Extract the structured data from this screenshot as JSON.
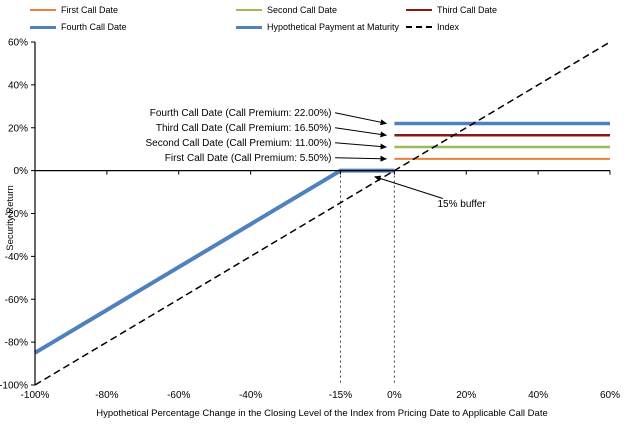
{
  "chart_data": {
    "type": "line",
    "title": "",
    "xlabel": "Hypothetical Percentage Change in the Closing Level of the Index from Pricing Date to Applicable Call Date",
    "ylabel": "Security Return",
    "xlim": [
      -100,
      60
    ],
    "ylim": [
      -100,
      60
    ],
    "grid": false,
    "legend_position": "top",
    "x_ticks": [
      {
        "value": -100,
        "label": "-100%"
      },
      {
        "value": -80,
        "label": "-80%"
      },
      {
        "value": -60,
        "label": "-60%"
      },
      {
        "value": -40,
        "label": "-40%"
      },
      {
        "value": -15,
        "label": "-15%"
      },
      {
        "value": 0,
        "label": "0%"
      },
      {
        "value": 20,
        "label": "20%"
      },
      {
        "value": 40,
        "label": "40%"
      },
      {
        "value": 60,
        "label": "60%"
      }
    ],
    "y_ticks": [
      {
        "value": 60,
        "label": "60%"
      },
      {
        "value": 40,
        "label": "40%"
      },
      {
        "value": 20,
        "label": "20%"
      },
      {
        "value": 0,
        "label": "0%"
      },
      {
        "value": -20,
        "label": "-20%"
      },
      {
        "value": -40,
        "label": "-40%"
      },
      {
        "value": -60,
        "label": "-60%"
      },
      {
        "value": -80,
        "label": "-80%"
      },
      {
        "value": -100,
        "label": "-100%"
      }
    ],
    "series": [
      {
        "name": "First Call Date",
        "color": "#E8823C",
        "width": 2,
        "dash": "",
        "points": [
          [
            0,
            5.5
          ],
          [
            60,
            5.5
          ]
        ]
      },
      {
        "name": "Second Call Date",
        "color": "#9BBB59",
        "width": 2.5,
        "dash": "",
        "points": [
          [
            0,
            11
          ],
          [
            60,
            11
          ]
        ]
      },
      {
        "name": "Third Call Date",
        "color": "#8B1A12",
        "width": 2.5,
        "dash": "",
        "points": [
          [
            0,
            16.5
          ],
          [
            60,
            16.5
          ]
        ]
      },
      {
        "name": "Fourth Call Date",
        "color": "#4F81BD",
        "width": 3.5,
        "dash": "",
        "points": [
          [
            0,
            22
          ],
          [
            60,
            22
          ]
        ]
      },
      {
        "name": "Hypothetical Payment at Maturity",
        "color": "#4F81BD",
        "width": 4,
        "dash": "",
        "points": [
          [
            -100,
            -85
          ],
          [
            -15,
            0
          ],
          [
            0,
            0
          ]
        ]
      },
      {
        "name": "Index",
        "color": "#000000",
        "width": 1.5,
        "dash": "7,4",
        "points": [
          [
            -100,
            -100
          ],
          [
            60,
            60
          ]
        ]
      }
    ],
    "guide_lines": [
      {
        "x": -15,
        "from_y": 0,
        "to_y": -100
      },
      {
        "x": 0,
        "from_y": 0,
        "to_y": -100
      }
    ],
    "annotations": [
      {
        "text": "Fourth Call Date (Call Premium: 22.00%)",
        "anchor": "end",
        "text_xy": [
          -17.5,
          25.5
        ],
        "arrow_from_xy": [
          -16.5,
          27
        ],
        "arrow_to_xy": [
          -2.2,
          22
        ]
      },
      {
        "text": "Third Call Date (Call Premium: 16.50%)",
        "anchor": "end",
        "text_xy": [
          -17.5,
          18.5
        ],
        "arrow_from_xy": [
          -16.5,
          20
        ],
        "arrow_to_xy": [
          -2.2,
          16.5
        ]
      },
      {
        "text": "Second Call Date (Call Premium: 11.00%)",
        "anchor": "end",
        "text_xy": [
          -17.5,
          11.5
        ],
        "arrow_from_xy": [
          -16.5,
          13
        ],
        "arrow_to_xy": [
          -2.2,
          11
        ]
      },
      {
        "text": "First Call Date (Call Premium: 5.50%)",
        "anchor": "end",
        "text_xy": [
          -17.5,
          4.5
        ],
        "arrow_from_xy": [
          -16.5,
          6
        ],
        "arrow_to_xy": [
          -2.2,
          5.5
        ]
      },
      {
        "text": "15% buffer",
        "anchor": "start",
        "text_xy": [
          12,
          -17
        ],
        "arrow_from_xy": [
          13.5,
          -13
        ],
        "arrow_to_xy": [
          -5.5,
          -2.8
        ]
      }
    ]
  }
}
